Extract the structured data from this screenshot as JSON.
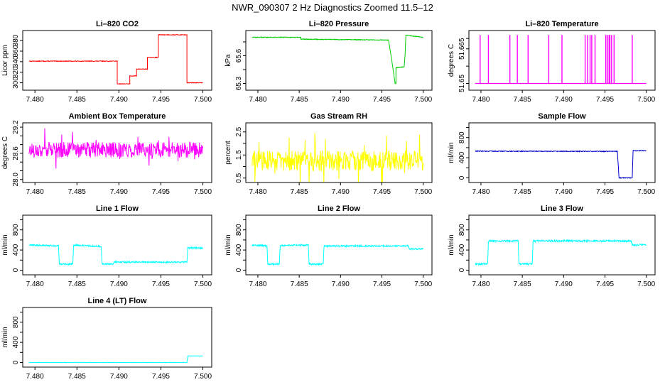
{
  "page_title": "NWR_090307  2 Hz Diagnostics Zoomed 11.5–12",
  "chart_data": [
    {
      "type": "line",
      "title": "Li–820 CO2",
      "ylabel": "Licor ppm",
      "xlim": [
        7.4788,
        7.5008
      ],
      "ylim": [
        290,
        395
      ],
      "yticks": [
        300,
        320,
        340,
        360,
        380
      ],
      "xticks": [
        "7.480",
        "7.485",
        "7.490",
        "7.495",
        "7.500"
      ],
      "color": "#ff0000",
      "series": [
        {
          "kind": "step",
          "noise": 0.6,
          "x": [
            7.4793,
            7.4898,
            7.4898,
            7.4913,
            7.4913,
            7.4921,
            7.4921,
            7.4934,
            7.4934,
            7.4947,
            7.4947,
            7.4981,
            7.4981,
            7.5
          ],
          "y": [
            341,
            341,
            298,
            298,
            313,
            313,
            326,
            326,
            348,
            348,
            391,
            391,
            300,
            300
          ]
        }
      ]
    },
    {
      "type": "line",
      "title": "Li–820 Pressure",
      "ylabel": "kPa",
      "xlim": [
        7.4788,
        7.5008
      ],
      "ylim": [
        65.25,
        65.85
      ],
      "yticks": [
        65.3,
        65.6
      ],
      "extra_tick_positions": [
        65.45,
        65.75
      ],
      "xticks": [
        "7.480",
        "7.485",
        "7.490",
        "7.495",
        "7.500"
      ],
      "color": "#00cc00",
      "series": [
        {
          "kind": "step",
          "noise": 0.004,
          "x": [
            7.4793,
            7.4852,
            7.4852,
            7.4958,
            7.4962,
            7.4966,
            7.4967,
            7.4967,
            7.4977,
            7.4978,
            7.4979,
            7.4981,
            7.5
          ],
          "y": [
            65.8,
            65.8,
            65.78,
            65.77,
            65.55,
            65.3,
            65.3,
            65.47,
            65.48,
            65.6,
            65.82,
            65.82,
            65.8
          ]
        }
      ]
    },
    {
      "type": "line",
      "title": "Li–820 Temperature",
      "ylabel": "degrees C",
      "xlim": [
        7.4788,
        7.5008
      ],
      "ylim": [
        51.648,
        51.672
      ],
      "yticks": [
        51.65,
        51.665
      ],
      "extra_tick_positions": [
        51.6575,
        51.6695
      ],
      "xticks": [
        "7.480",
        "7.485",
        "7.490",
        "7.495",
        "7.500"
      ],
      "color": "#ff00ff",
      "series": [
        {
          "kind": "spikes",
          "base": 51.65,
          "peak": 51.671,
          "x": [
            7.4799,
            7.4809,
            7.4835,
            7.4844,
            7.4857,
            7.4882,
            7.4898,
            7.4926,
            7.4929,
            7.4932,
            7.4934,
            7.4938,
            7.4951,
            7.4953,
            7.4955,
            7.4956,
            7.4958,
            7.4983,
            7.4961
          ]
        }
      ]
    },
    {
      "type": "line",
      "title": "Ambient Box Temperature",
      "ylabel": "degrees C",
      "xlim": [
        7.4788,
        7.5008
      ],
      "ylim": [
        27.98,
        29.25
      ],
      "yticks": [
        28.0,
        28.2,
        28.4,
        28.6,
        28.8,
        29.0,
        29.2
      ],
      "tick_labels": [
        "28.0",
        "",
        "",
        "28.6",
        "",
        "",
        "29.2"
      ],
      "xticks": [
        "7.480",
        "7.485",
        "7.490",
        "7.495",
        "7.500"
      ],
      "color": "#ff00ff",
      "series": [
        {
          "kind": "noise",
          "base": 28.68,
          "amp": 0.18,
          "spike": 0.5,
          "seed": 17
        }
      ]
    },
    {
      "type": "line",
      "title": "Gas Stream RH",
      "ylabel": "percent",
      "xlim": [
        7.4788,
        7.5008
      ],
      "ylim": [
        0.4,
        2.8
      ],
      "yticks": [
        0.5,
        1.5,
        2.5
      ],
      "extra_tick_positions": [
        1.0,
        2.0
      ],
      "xticks": [
        "7.480",
        "7.485",
        "7.490",
        "7.495",
        "7.500"
      ],
      "color": "#ffff00",
      "series": [
        {
          "kind": "noise",
          "base": 1.25,
          "amp": 0.45,
          "spike": 1.3,
          "seed": 29
        }
      ]
    },
    {
      "type": "line",
      "title": "Sample Flow",
      "ylabel": "ml/min",
      "xlim": [
        7.4788,
        7.5008
      ],
      "ylim": [
        -50,
        1050
      ],
      "yticks": [
        0,
        200,
        400,
        600,
        800,
        1000
      ],
      "tick_labels": [
        "0",
        "",
        "400",
        "",
        "800",
        ""
      ],
      "xticks": [
        "7.480",
        "7.485",
        "7.490",
        "7.495",
        "7.500"
      ],
      "color": "#0000cc",
      "series": [
        {
          "kind": "step",
          "noise": 8,
          "x": [
            7.4793,
            7.4965,
            7.4967,
            7.4967,
            7.4983,
            7.4984,
            7.4984,
            7.5
          ],
          "y": [
            530,
            525,
            0,
            0,
            0,
            540,
            540,
            540
          ]
        }
      ]
    },
    {
      "type": "line",
      "title": "Line 1 Flow",
      "ylabel": "ml/min",
      "xlim": [
        7.4788,
        7.5008
      ],
      "ylim": [
        -50,
        1050
      ],
      "yticks": [
        0,
        200,
        400,
        600,
        800,
        1000
      ],
      "tick_labels": [
        "0",
        "",
        "400",
        "",
        "800",
        ""
      ],
      "xticks": [
        "7.480",
        "7.485",
        "7.490",
        "7.495",
        "7.500"
      ],
      "color": "#00ffff",
      "series": [
        {
          "kind": "step",
          "noise": 15,
          "x": [
            7.4793,
            7.4828,
            7.4829,
            7.4845,
            7.4846,
            7.4879,
            7.488,
            7.4893,
            7.4894,
            7.4981,
            7.4982,
            7.5
          ],
          "y": [
            500,
            480,
            120,
            120,
            500,
            470,
            120,
            120,
            160,
            160,
            440,
            440
          ]
        }
      ]
    },
    {
      "type": "line",
      "title": "Line 2 Flow",
      "ylabel": "ml/min",
      "xlim": [
        7.4788,
        7.5008
      ],
      "ylim": [
        -50,
        1050
      ],
      "yticks": [
        0,
        200,
        400,
        600,
        800,
        1000
      ],
      "tick_labels": [
        "0",
        "",
        "400",
        "",
        "800",
        ""
      ],
      "xticks": [
        "7.480",
        "7.485",
        "7.490",
        "7.495",
        "7.500"
      ],
      "color": "#00ffff",
      "series": [
        {
          "kind": "step",
          "noise": 15,
          "x": [
            7.4793,
            7.4811,
            7.4812,
            7.4826,
            7.4827,
            7.4861,
            7.4862,
            7.4879,
            7.488,
            7.4982,
            7.4983,
            7.5
          ],
          "y": [
            500,
            480,
            120,
            120,
            490,
            500,
            120,
            120,
            480,
            480,
            420,
            420
          ]
        }
      ]
    },
    {
      "type": "line",
      "title": "Line 3 Flow",
      "ylabel": "ml/min",
      "xlim": [
        7.4788,
        7.5008
      ],
      "ylim": [
        -50,
        1050
      ],
      "yticks": [
        0,
        200,
        400,
        600,
        800,
        1000
      ],
      "tick_labels": [
        "0",
        "",
        "400",
        "",
        "800",
        ""
      ],
      "xticks": [
        "7.480",
        "7.485",
        "7.490",
        "7.495",
        "7.500"
      ],
      "color": "#00ffff",
      "series": [
        {
          "kind": "step",
          "noise": 18,
          "x": [
            7.4793,
            7.4808,
            7.4809,
            7.4845,
            7.4846,
            7.4862,
            7.4863,
            7.4982,
            7.4983,
            7.5
          ],
          "y": [
            120,
            120,
            580,
            580,
            120,
            120,
            580,
            580,
            500,
            500
          ]
        }
      ]
    },
    {
      "type": "line",
      "title": "Line 4 (LT) Flow",
      "ylabel": "ml/min",
      "xlim": [
        7.4788,
        7.5008
      ],
      "ylim": [
        -50,
        1050
      ],
      "yticks": [
        0,
        200,
        400,
        600,
        800,
        1000
      ],
      "tick_labels": [
        "0",
        "",
        "400",
        "",
        "800",
        ""
      ],
      "xticks": [
        "7.480",
        "7.485",
        "7.490",
        "7.495",
        "7.500"
      ],
      "color": "#00ffff",
      "series": [
        {
          "kind": "step",
          "noise": 3,
          "x": [
            7.4793,
            7.4981,
            7.4982,
            7.5
          ],
          "y": [
            0,
            0,
            130,
            130
          ]
        }
      ]
    }
  ]
}
